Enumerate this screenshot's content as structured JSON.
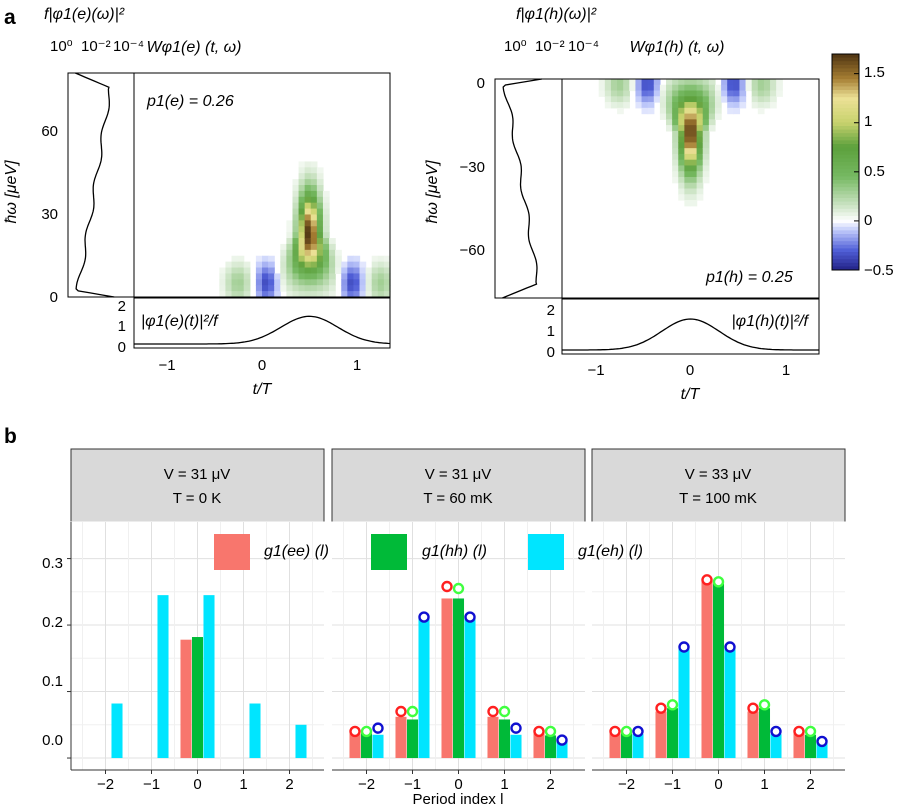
{
  "panels": {
    "a": "a",
    "b": "b"
  },
  "chart_data": [
    {
      "type": "heatmap",
      "title": "Wφ1(e) (t, ω)",
      "annotation": "p1(e) = 0.26",
      "xlabel": "t/T",
      "ylabel": "ħω [μeV]",
      "xlim": [
        -1.35,
        1.35
      ],
      "ylim": [
        0,
        81
      ],
      "xticks": [
        "−1",
        "0",
        "1"
      ],
      "yticks": [
        "0",
        "30",
        "60"
      ],
      "spectral_label": "f|φ1(e)(ω)|²",
      "spectral_ticks": [
        "10⁰",
        "10⁻²",
        "10⁻⁴"
      ],
      "temporal_label": "|φ1(e)(t)|²/f",
      "temporal_ticks": [
        "0",
        "1",
        "2"
      ],
      "peak": {
        "t": 0.5,
        "omega_ueV": 23,
        "value": 1.7
      },
      "temporal_profile": {
        "center": 0.5,
        "height": 1.45,
        "width": 0.3
      }
    },
    {
      "type": "heatmap",
      "title": "Wφ1(h) (t, ω)",
      "annotation": "p1(h) = 0.25",
      "xlabel": "t/T",
      "ylabel": "ħω [μeV]",
      "xlim": [
        -1.35,
        1.35
      ],
      "ylim": [
        -81,
        0
      ],
      "xticks": [
        "−1",
        "0",
        "1"
      ],
      "yticks": [
        "0",
        "−30",
        "−60"
      ],
      "spectral_label": "f|φ1(h)(ω)|²",
      "spectral_ticks": [
        "10⁰",
        "10⁻²",
        "10⁻⁴"
      ],
      "temporal_label": "|φ1(h)(t)|²/f",
      "temporal_ticks": [
        "0",
        "1",
        "2"
      ],
      "peak": {
        "t": 0.0,
        "omega_ueV": -20,
        "value": 1.7
      },
      "temporal_profile": {
        "center": 0.0,
        "height": 1.45,
        "width": 0.3
      },
      "colorbar": {
        "range": [
          -0.5,
          1.7
        ],
        "ticks": [
          "1.5",
          "1",
          "0.5",
          "0",
          "−0.5"
        ],
        "tick_values": [
          1.5,
          1,
          0.5,
          0,
          -0.5
        ]
      }
    },
    {
      "type": "bar",
      "xlabel": "Period index l",
      "ylim": [
        0,
        0.35
      ],
      "yticks": [
        "0.0",
        "0.1",
        "0.2",
        "0.3"
      ],
      "ytick_values": [
        0,
        0.1,
        0.2,
        0.3
      ],
      "categories": [
        -2,
        -1,
        0,
        1,
        2
      ],
      "xtick_labels": [
        "−2",
        "−1",
        "0",
        "1",
        "2"
      ],
      "legend": [
        {
          "name": "g1(ee) (l)",
          "color": "#f8766d"
        },
        {
          "name": "g1(hh) (l)",
          "color": "#00ba38"
        },
        {
          "name": "g1(eh) (l)",
          "color": "#00e5ff"
        }
      ],
      "facets": [
        {
          "strip": [
            "V = 31 μV",
            "T = 0 K"
          ],
          "ee": [
            0,
            0,
            0.178,
            0,
            0
          ],
          "hh": [
            0,
            0,
            0.182,
            0,
            0
          ],
          "eh_x": [
            -1.75,
            -0.75,
            0.25,
            1.25,
            2.25
          ],
          "eh": [
            0.082,
            0.245,
            0.245,
            0.082,
            0.05
          ],
          "points_ee": [],
          "points_hh": [],
          "points_eh": []
        },
        {
          "strip": [
            "V = 31 μV",
            "T = 60 mK"
          ],
          "ee": [
            0.037,
            0.062,
            0.24,
            0.062,
            0.037
          ],
          "hh": [
            0.037,
            0.058,
            0.24,
            0.058,
            0.034
          ],
          "eh_x": [
            -1.75,
            -0.75,
            0.25,
            1.25,
            2.25
          ],
          "eh": [
            0.035,
            0.21,
            0.21,
            0.035,
            0.025
          ],
          "points_ee": [
            0.04,
            0.07,
            0.258,
            0.07,
            0.04
          ],
          "points_hh": [
            0.04,
            0.07,
            0.255,
            0.07,
            0.04
          ],
          "points_eh": [
            0.045,
            0.212,
            0.212,
            0.045,
            0.027
          ]
        },
        {
          "strip": [
            "V = 33 μV",
            "T = 100 mK"
          ],
          "ee": [
            0.037,
            0.07,
            0.268,
            0.07,
            0.037
          ],
          "hh": [
            0.037,
            0.075,
            0.262,
            0.075,
            0.035
          ],
          "eh_x": [
            -1.75,
            -0.75,
            0.25,
            1.25,
            2.25
          ],
          "eh": [
            0.036,
            0.165,
            0.165,
            0.036,
            0.024
          ],
          "points_ee": [
            0.04,
            0.075,
            0.268,
            0.075,
            0.04
          ],
          "points_hh": [
            0.04,
            0.08,
            0.265,
            0.08,
            0.04
          ],
          "points_eh": [
            0.04,
            0.167,
            0.167,
            0.04,
            0.025
          ]
        }
      ]
    }
  ]
}
